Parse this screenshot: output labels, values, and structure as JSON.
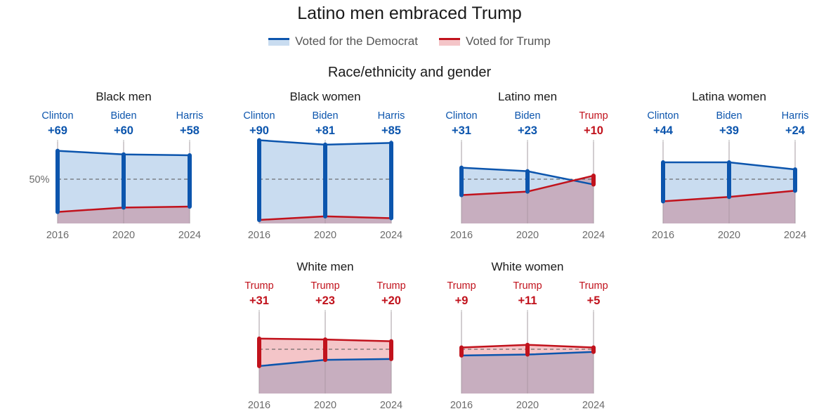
{
  "title": "Latino men embraced Trump",
  "legend": {
    "democrat": "Voted for the Democrat",
    "trump": "Voted for Trump"
  },
  "section_title": "Race/ethnicity and gender",
  "reference_label": "50%",
  "colors": {
    "democrat": "#0c55ad",
    "democrat_fill": "#c9dcf0",
    "trump": "#c1121c",
    "trump_fill": "#f4c5c8",
    "overlap_fill": "#c7aebf"
  },
  "chart_data": [
    {
      "type": "line",
      "title": "Black men",
      "x": [
        "2016",
        "2020",
        "2024"
      ],
      "leaders": [
        "Clinton",
        "Biden",
        "Harris"
      ],
      "margins": [
        "+69",
        "+60",
        "+58"
      ],
      "winner": [
        "dem",
        "dem",
        "dem"
      ],
      "series": [
        {
          "name": "Voted for the Democrat",
          "values": [
            82,
            78,
            77
          ]
        },
        {
          "name": "Voted for Trump",
          "values": [
            13,
            18,
            19
          ]
        }
      ],
      "ylim": [
        0,
        100
      ]
    },
    {
      "type": "line",
      "title": "Black women",
      "x": [
        "2016",
        "2020",
        "2024"
      ],
      "leaders": [
        "Clinton",
        "Biden",
        "Harris"
      ],
      "margins": [
        "+90",
        "+81",
        "+85"
      ],
      "winner": [
        "dem",
        "dem",
        "dem"
      ],
      "series": [
        {
          "name": "Voted for the Democrat",
          "values": [
            94,
            89,
            91
          ]
        },
        {
          "name": "Voted for Trump",
          "values": [
            4,
            8,
            6
          ]
        }
      ],
      "ylim": [
        0,
        100
      ]
    },
    {
      "type": "line",
      "title": "Latino men",
      "x": [
        "2016",
        "2020",
        "2024"
      ],
      "leaders": [
        "Clinton",
        "Biden",
        "Trump"
      ],
      "margins": [
        "+31",
        "+23",
        "+10"
      ],
      "winner": [
        "dem",
        "dem",
        "rep"
      ],
      "series": [
        {
          "name": "Voted for the Democrat",
          "values": [
            63,
            59,
            44
          ]
        },
        {
          "name": "Voted for Trump",
          "values": [
            32,
            36,
            54
          ]
        }
      ],
      "ylim": [
        0,
        100
      ]
    },
    {
      "type": "line",
      "title": "Latina women",
      "x": [
        "2016",
        "2020",
        "2024"
      ],
      "leaders": [
        "Clinton",
        "Biden",
        "Harris"
      ],
      "margins": [
        "+44",
        "+39",
        "+24"
      ],
      "winner": [
        "dem",
        "dem",
        "dem"
      ],
      "series": [
        {
          "name": "Voted for the Democrat",
          "values": [
            69,
            69,
            61
          ]
        },
        {
          "name": "Voted for Trump",
          "values": [
            25,
            30,
            37
          ]
        }
      ],
      "ylim": [
        0,
        100
      ]
    },
    {
      "type": "line",
      "title": "White men",
      "x": [
        "2016",
        "2020",
        "2024"
      ],
      "leaders": [
        "Trump",
        "Trump",
        "Trump"
      ],
      "margins": [
        "+31",
        "+23",
        "+20"
      ],
      "winner": [
        "rep",
        "rep",
        "rep"
      ],
      "series": [
        {
          "name": "Voted for the Democrat",
          "values": [
            31,
            38,
            39
          ]
        },
        {
          "name": "Voted for Trump",
          "values": [
            62,
            61,
            59
          ]
        }
      ],
      "ylim": [
        0,
        100
      ]
    },
    {
      "type": "line",
      "title": "White women",
      "x": [
        "2016",
        "2020",
        "2024"
      ],
      "leaders": [
        "Trump",
        "Trump",
        "Trump"
      ],
      "margins": [
        "+9",
        "+11",
        "+5"
      ],
      "winner": [
        "rep",
        "rep",
        "rep"
      ],
      "series": [
        {
          "name": "Voted for the Democrat",
          "values": [
            43,
            44,
            47
          ]
        },
        {
          "name": "Voted for Trump",
          "values": [
            52,
            55,
            52
          ]
        }
      ],
      "ylim": [
        0,
        100
      ]
    }
  ]
}
